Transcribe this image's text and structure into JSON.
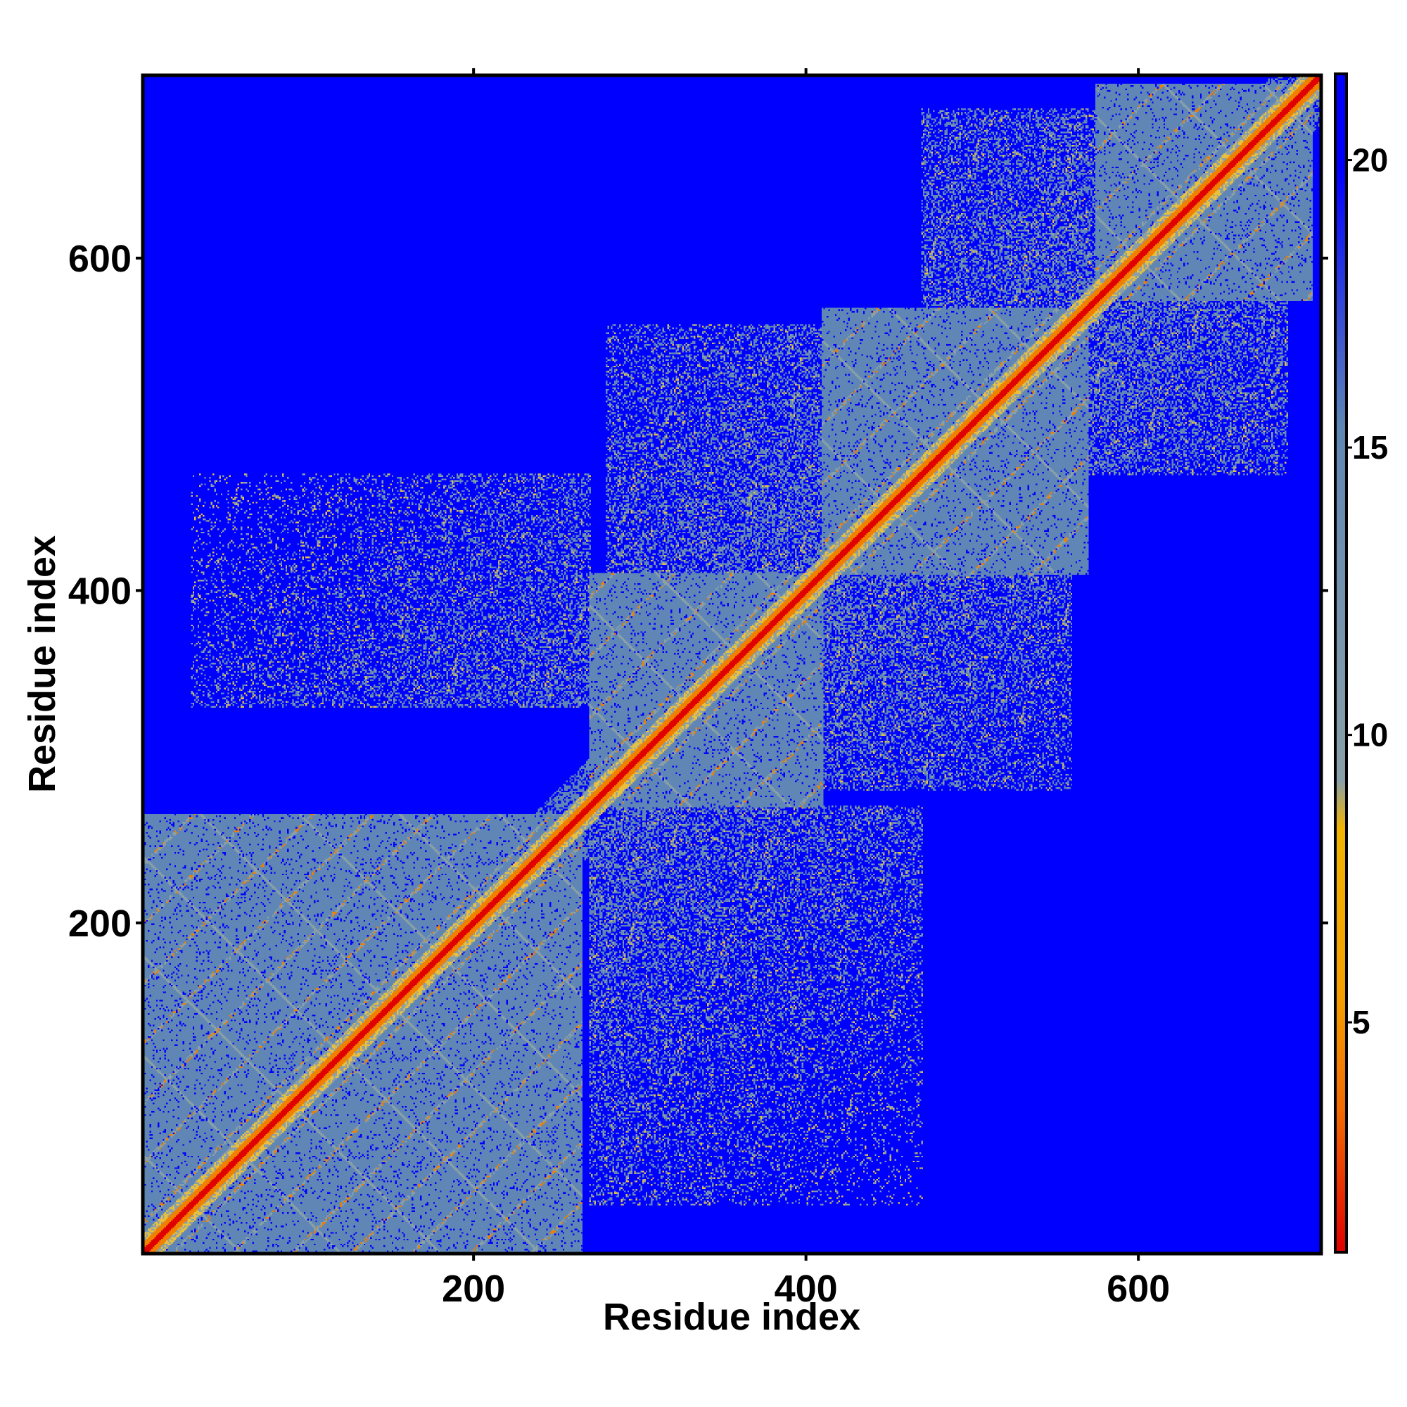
{
  "chart_data": {
    "type": "heatmap",
    "title": "",
    "xlabel": "Residue index",
    "ylabel": "Residue index",
    "xlim": [
      1,
      710
    ],
    "ylim": [
      1,
      710
    ],
    "x_ticks": [
      200,
      400,
      600
    ],
    "y_ticks": [
      200,
      400,
      600
    ],
    "colorbar": {
      "ticks": [
        5,
        10,
        15,
        20
      ],
      "range": [
        1,
        21.5
      ],
      "colors": [
        "#e00000",
        "#f26a00",
        "#f5a000",
        "#f0b400",
        "#8aa0a8",
        "#5f86b4",
        "#0000ff"
      ]
    },
    "background_color": "#0000ff",
    "diagonal_color": "#e00000",
    "domains": [
      {
        "start": 1,
        "end": 265,
        "level": 15
      },
      {
        "start": 270,
        "end": 410,
        "level": 15
      },
      {
        "start": 410,
        "end": 570,
        "level": 15
      },
      {
        "start": 575,
        "end": 705,
        "level": 15
      }
    ],
    "off_diagonal_blocks": [
      {
        "x": [
          30,
          270
        ],
        "y": [
          330,
          470
        ],
        "level": 16
      },
      {
        "x": [
          270,
          470
        ],
        "y": [
          30,
          270
        ],
        "level": 16
      },
      {
        "x": [
          280,
          560
        ],
        "y": [
          400,
          560
        ],
        "level": 17
      },
      {
        "x": [
          400,
          560
        ],
        "y": [
          280,
          400
        ],
        "level": 17
      },
      {
        "x": [
          470,
          670
        ],
        "y": [
          560,
          690
        ],
        "level": 18
      },
      {
        "x": [
          560,
          690
        ],
        "y": [
          470,
          620
        ],
        "level": 18
      }
    ]
  }
}
